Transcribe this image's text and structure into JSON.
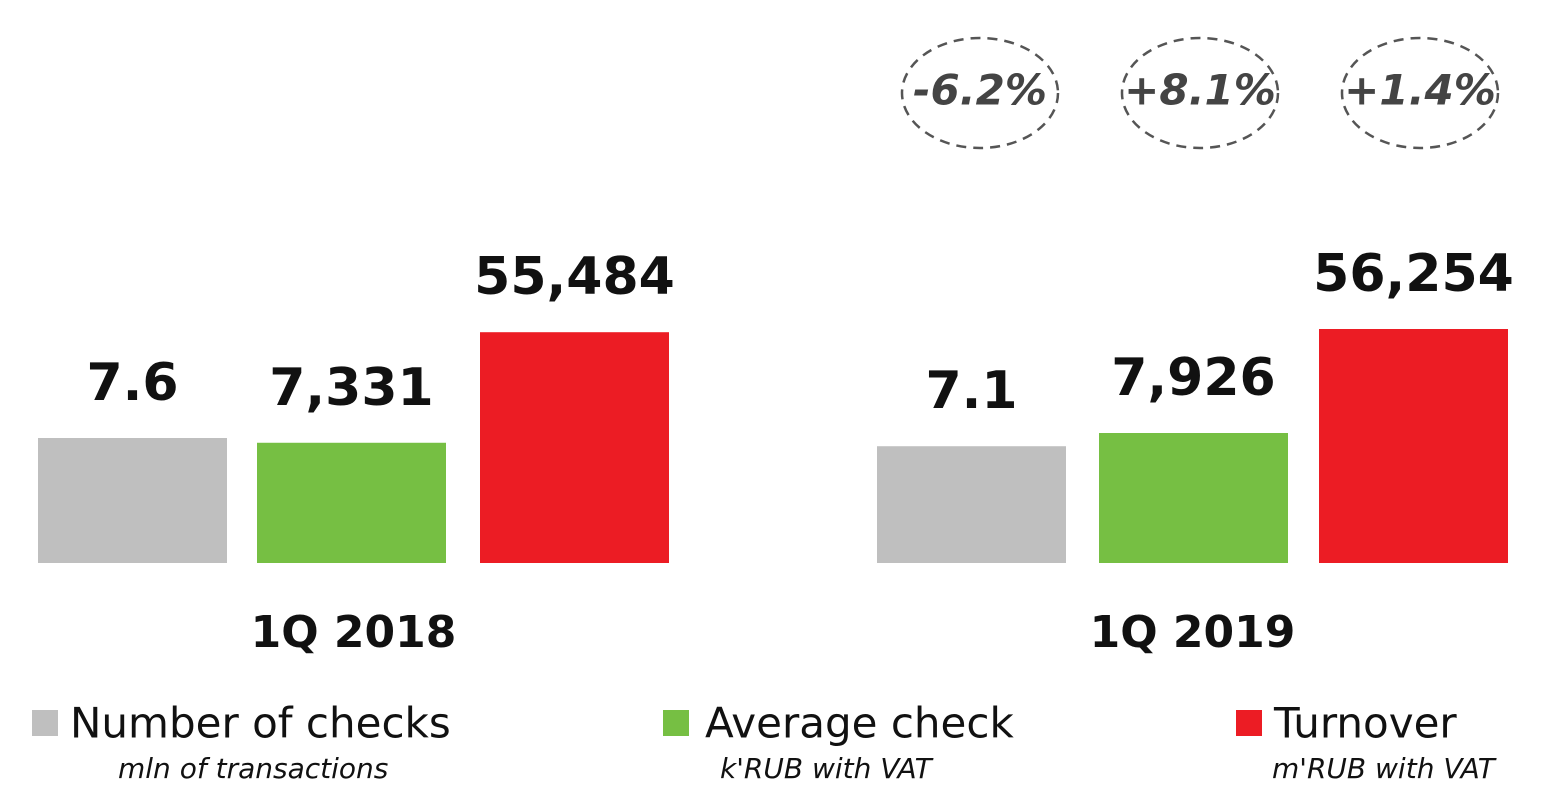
{
  "chart_data": {
    "type": "bar",
    "categories": [
      "1Q 2018",
      "1Q 2019"
    ],
    "series": [
      {
        "name": "Number of checks",
        "note": "mln of transactions",
        "color": "#bfbfbf",
        "values": [
          7.6,
          7.1
        ]
      },
      {
        "name": "Average check",
        "note": "k'RUB with VAT",
        "color": "#76bf43",
        "values": [
          7331,
          7926
        ],
        "value_labels": [
          "7,331",
          "7,926"
        ]
      },
      {
        "name": "Turnover",
        "note": "m'RUB with VAT",
        "color": "#ec1c24",
        "values": [
          55484,
          56254
        ],
        "value_labels": [
          "55,484",
          "56,254"
        ]
      }
    ],
    "annotations": [
      "-6.2%",
      "+8.1%",
      "+1.4%"
    ]
  }
}
